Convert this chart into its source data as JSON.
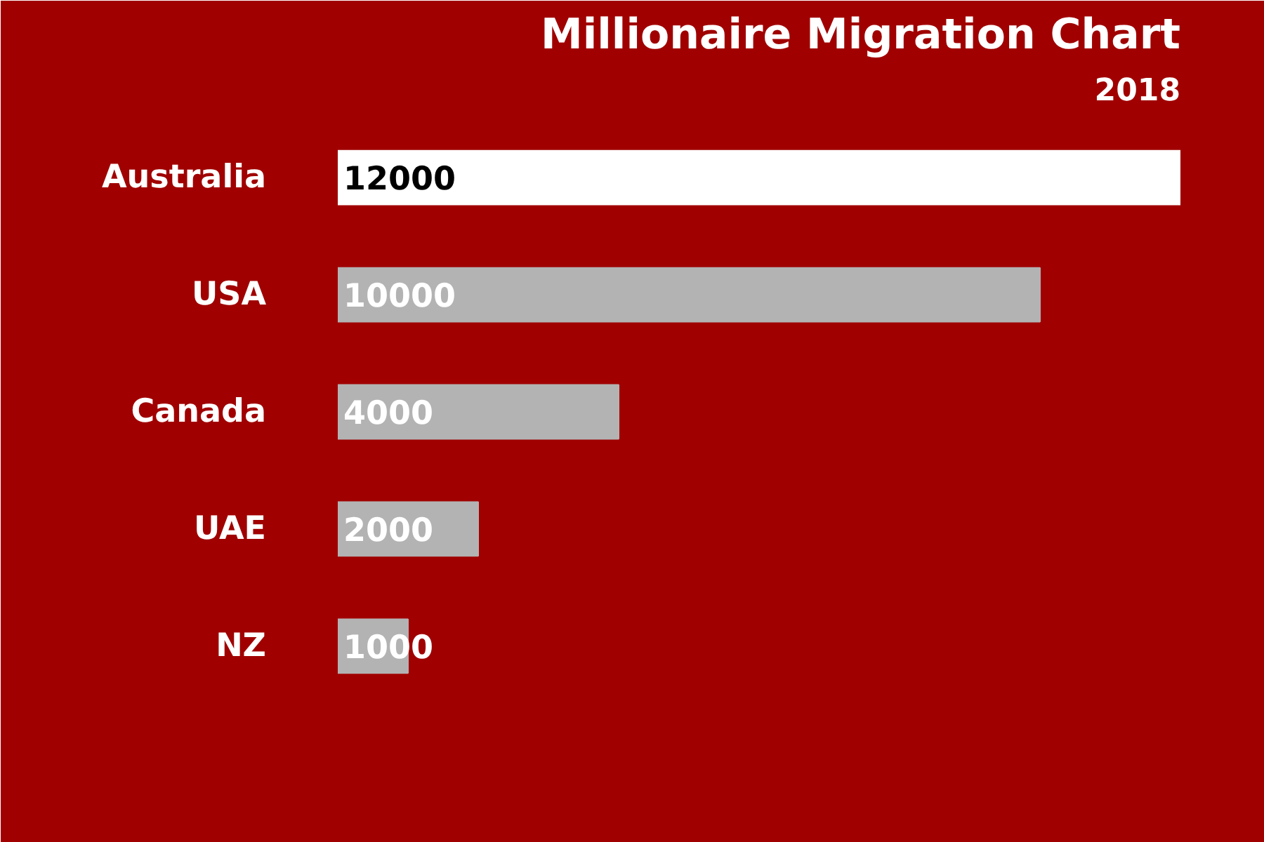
{
  "chart_data": {
    "type": "bar",
    "orientation": "horizontal",
    "title": "Millionaire Migration Chart",
    "subtitle": "2018",
    "categories": [
      "Australia",
      "USA",
      "Canada",
      "UAE",
      "NZ"
    ],
    "values": [
      12000,
      10000,
      4000,
      2000,
      1000
    ],
    "colors": [
      "#ffffff",
      "#b3b3b3",
      "#b3b3b3",
      "#b3b3b3",
      "#b3b3b3"
    ],
    "data_labels": true
  }
}
